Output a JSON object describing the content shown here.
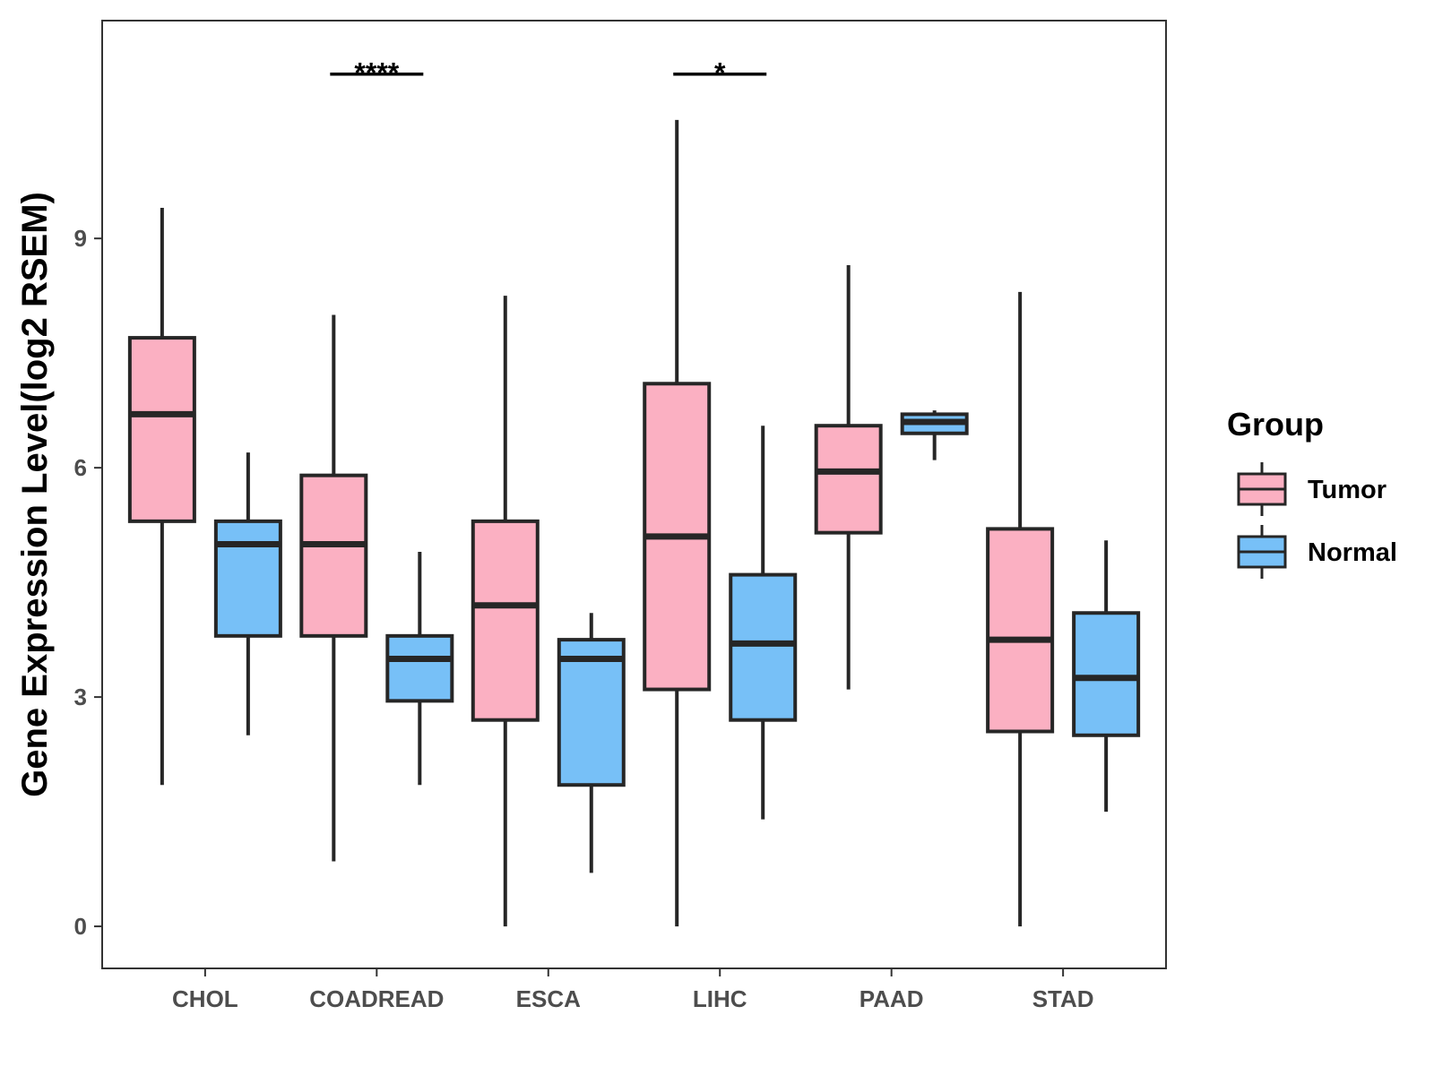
{
  "chart_data": {
    "type": "boxplot",
    "title": "",
    "xlabel": "",
    "ylabel": "Gene Expression Level(log2 RSEM)",
    "ylim": [
      -0.55,
      11.85
    ],
    "yticks": [
      0,
      3,
      6,
      9
    ],
    "ytick_labels": [
      "0",
      "3",
      "6",
      "9"
    ],
    "grid": false,
    "legend": {
      "title": "Group",
      "position": "right",
      "entries": [
        {
          "name": "Tumor",
          "color": "#fbb0c2"
        },
        {
          "name": "Normal",
          "color": "#77c0f7"
        }
      ]
    },
    "categories": [
      "CHOL",
      "COADREAD",
      "ESCA",
      "LIHC",
      "PAAD",
      "STAD"
    ],
    "series": [
      {
        "name": "Tumor",
        "color": "#fbb0c2",
        "boxes": [
          {
            "whisker_low": 1.85,
            "q1": 5.3,
            "median": 6.7,
            "q3": 7.7,
            "whisker_high": 9.4
          },
          {
            "whisker_low": 0.85,
            "q1": 3.8,
            "median": 5.0,
            "q3": 5.9,
            "whisker_high": 8.0
          },
          {
            "whisker_low": 0.0,
            "q1": 2.7,
            "median": 4.2,
            "q3": 5.3,
            "whisker_high": 8.25
          },
          {
            "whisker_low": 0.0,
            "q1": 3.1,
            "median": 5.1,
            "q3": 7.1,
            "whisker_high": 10.55
          },
          {
            "whisker_low": 3.1,
            "q1": 5.15,
            "median": 5.95,
            "q3": 6.55,
            "whisker_high": 8.65
          },
          {
            "whisker_low": 0.0,
            "q1": 2.55,
            "median": 3.75,
            "q3": 5.2,
            "whisker_high": 8.3
          }
        ]
      },
      {
        "name": "Normal",
        "color": "#77c0f7",
        "boxes": [
          {
            "whisker_low": 2.5,
            "q1": 3.8,
            "median": 5.0,
            "q3": 5.3,
            "whisker_high": 6.2
          },
          {
            "whisker_low": 1.85,
            "q1": 2.95,
            "median": 3.5,
            "q3": 3.8,
            "whisker_high": 4.9
          },
          {
            "whisker_low": 0.7,
            "q1": 1.85,
            "median": 3.5,
            "q3": 3.75,
            "whisker_high": 4.1
          },
          {
            "whisker_low": 1.4,
            "q1": 2.7,
            "median": 3.7,
            "q3": 4.6,
            "whisker_high": 6.55
          },
          {
            "whisker_low": 6.1,
            "q1": 6.45,
            "median": 6.6,
            "q3": 6.7,
            "whisker_high": 6.75
          },
          {
            "whisker_low": 1.5,
            "q1": 2.5,
            "median": 3.25,
            "q3": 4.1,
            "whisker_high": 5.05
          }
        ]
      }
    ],
    "annotations": [
      {
        "category": "COADREAD",
        "label": "****",
        "y": 11.15
      },
      {
        "category": "LIHC",
        "label": "*",
        "y": 11.15
      }
    ]
  }
}
